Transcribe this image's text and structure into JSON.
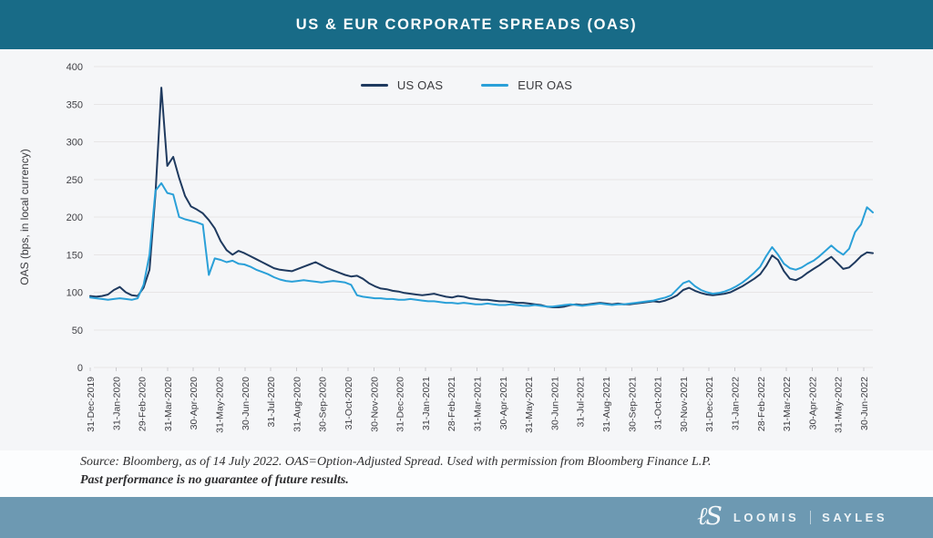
{
  "header": {
    "title": "US & EUR CORPORATE SPREADS (OAS)"
  },
  "colors": {
    "header_bg": "#186b87",
    "chart_bg": "#f5f6f8",
    "gridline": "#e7e5e6",
    "axis_text": "#3f3f44",
    "us_line": "#1f3a5f",
    "eur_line": "#2aa0d8",
    "footer_bg": "#6d99b2"
  },
  "chart_data": {
    "type": "line",
    "title": "US & EUR CORPORATE SPREADS (OAS)",
    "xlabel": "",
    "ylabel": "OAS (bps, in local currency)",
    "ylim": [
      0,
      400
    ],
    "ytick_step": 50,
    "grid": "horizontal",
    "legend_position": "top-center",
    "x_frequency": "weekly samples, 31-Dec-2019 through mid-July 2022",
    "x_tick_labels": [
      "31-Dec-2019",
      "31-Jan-2020",
      "29-Feb-2020",
      "31-Mar-2020",
      "30-Apr-2020",
      "31-May-2020",
      "30-Jun-2020",
      "31-Jul-2020",
      "31-Aug-2020",
      "30-Sep-2020",
      "31-Oct-2020",
      "30-Nov-2020",
      "31-Dec-2020",
      "31-Jan-2021",
      "28-Feb-2021",
      "31-Mar-2021",
      "30-Apr-2021",
      "31-May-2021",
      "30-Jun-2021",
      "31-Jul-2021",
      "31-Aug-2021",
      "30-Sep-2021",
      "31-Oct-2021",
      "30-Nov-2021",
      "31-Dec-2021",
      "31-Jan-2022",
      "28-Feb-2022",
      "31-Mar-2022",
      "30-Apr-2022",
      "31-May-2022",
      "30-Jun-2022"
    ],
    "series": [
      {
        "name": "US OAS",
        "color": "#1f3a5f",
        "values": [
          95,
          94,
          95,
          97,
          103,
          107,
          100,
          96,
          95,
          106,
          130,
          230,
          372,
          268,
          280,
          252,
          228,
          214,
          210,
          205,
          196,
          185,
          168,
          156,
          150,
          155,
          152,
          148,
          144,
          140,
          136,
          132,
          130,
          129,
          128,
          131,
          134,
          137,
          140,
          136,
          132,
          129,
          126,
          123,
          121,
          122,
          118,
          112,
          108,
          105,
          104,
          102,
          101,
          99,
          98,
          97,
          96,
          97,
          98,
          96,
          94,
          93,
          95,
          94,
          92,
          91,
          90,
          90,
          89,
          88,
          88,
          87,
          86,
          86,
          85,
          84,
          83,
          81,
          80,
          80,
          81,
          83,
          84,
          83,
          84,
          85,
          86,
          85,
          84,
          85,
          84,
          84,
          85,
          86,
          87,
          88,
          87,
          89,
          92,
          96,
          103,
          106,
          102,
          99,
          97,
          96,
          97,
          98,
          100,
          104,
          108,
          113,
          118,
          124,
          135,
          149,
          143,
          128,
          118,
          116,
          120,
          126,
          131,
          136,
          142,
          147,
          139,
          131,
          133,
          140,
          148,
          153,
          152
        ]
      },
      {
        "name": "EUR OAS",
        "color": "#2aa0d8",
        "values": [
          93,
          92,
          91,
          90,
          91,
          92,
          91,
          90,
          92,
          110,
          150,
          235,
          245,
          232,
          230,
          200,
          197,
          195,
          193,
          190,
          123,
          145,
          143,
          140,
          142,
          138,
          137,
          134,
          130,
          127,
          124,
          120,
          117,
          115,
          114,
          115,
          116,
          115,
          114,
          113,
          114,
          115,
          114,
          113,
          110,
          96,
          94,
          93,
          92,
          92,
          91,
          91,
          90,
          90,
          91,
          90,
          89,
          88,
          88,
          87,
          86,
          86,
          85,
          86,
          85,
          84,
          84,
          85,
          84,
          83,
          83,
          84,
          83,
          82,
          82,
          83,
          82,
          81,
          81,
          82,
          83,
          84,
          83,
          82,
          83,
          84,
          85,
          84,
          83,
          84,
          84,
          85,
          86,
          87,
          88,
          89,
          91,
          93,
          96,
          104,
          112,
          115,
          108,
          103,
          100,
          98,
          99,
          101,
          104,
          108,
          113,
          119,
          126,
          134,
          148,
          160,
          150,
          138,
          132,
          130,
          133,
          138,
          142,
          148,
          155,
          162,
          155,
          150,
          158,
          180,
          190,
          213,
          206
        ]
      }
    ]
  },
  "source_note": {
    "line1": "Source: Bloomberg, as of 14 July 2022. OAS=Option-Adjusted Spread. Used with permission from Bloomberg Finance L.P.",
    "line2": "Past performance is no guarantee of future results."
  },
  "footer": {
    "monogram": "ℓS",
    "brand_left": "LOOMIS",
    "brand_right": "SAYLES"
  }
}
